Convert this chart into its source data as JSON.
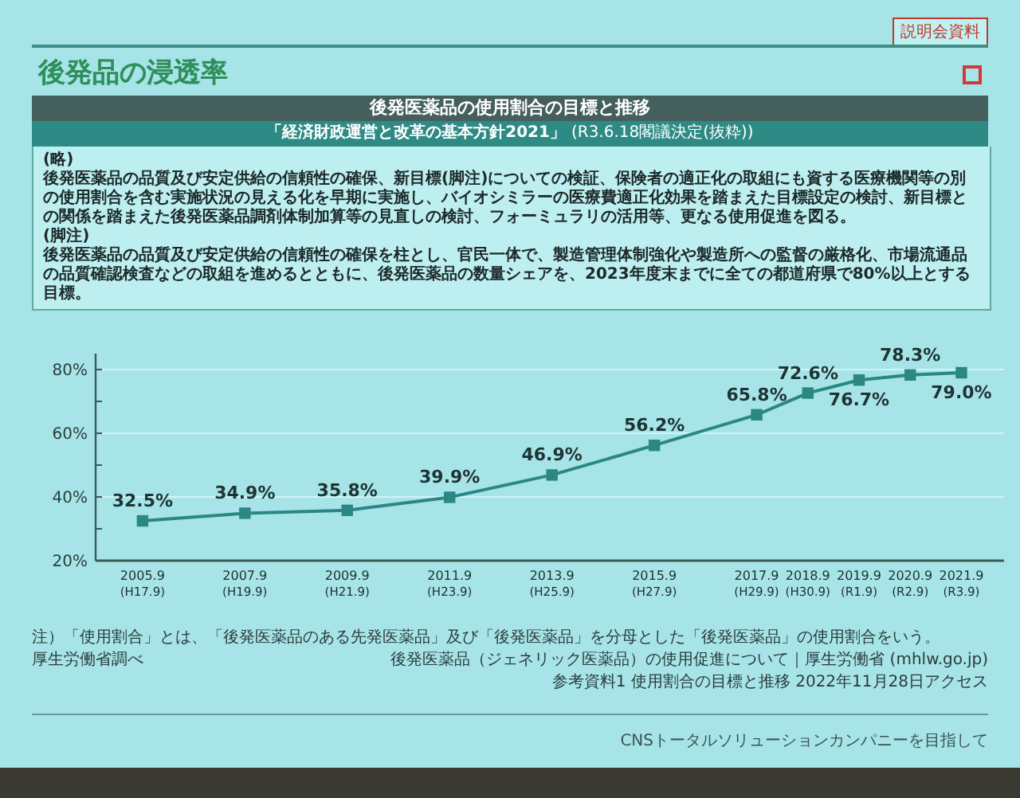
{
  "chart_data": {
    "type": "line",
    "title": "後発品の浸透率",
    "subtitle": "後発医薬品の使用割合の目標と推移",
    "annotations": [
      "説明会資料",
      "「経済財政運営と改革の基本方針2021」",
      "(R3.6.18閣議決定(抜粋))",
      "(略)",
      "後発医薬品の品質及び安定供給の信頼性の確保、新目標(脚注)についての検証、保険者の適正化の取組にも資する医療機関等の別の使用割合を含む実施状況の見える化を早期に実施し、バイオシミラーの医療費適正化効果を踏まえた目標設定の検討、新目標との関係を踏まえた後発医薬品調剤体制加算等の見直しの検討、フォーミュラリの活用等、更なる使用促進を図る。",
      "(脚注)",
      "後発医薬品の品質及び安定供給の信頼性の確保を柱とし、官民一体で、製造管理体制強化や製造所への監督の厳格化、市場流通品の品質確認検査などの取組を進めるとともに、後発医薬品の数量シェアを、2023年度末までに全ての都道府県で80%以上とする目標。",
      "注）「使用割合」とは、「後発医薬品のある先発医薬品」及び「後発医薬品」を分母とした「後発医薬品」の使用割合をいう。",
      "厚生労働省調べ",
      "後発医薬品（ジェネリック医薬品）の使用促進について｜厚生労働省 (mhlw.go.jp)",
      "参考資料1 使用割合の目標と推移 2022年11月28日アクセス",
      "CNSトータルソリューションカンパニーを目指して"
    ],
    "x": [
      "2005-09",
      "2007-09",
      "2009-09",
      "2011-09",
      "2013-09",
      "2015-09",
      "2017-09",
      "2018-09",
      "2019-09",
      "2020-09",
      "2021-09"
    ],
    "xlim": [
      "2004-10",
      "2022-07"
    ],
    "xticks": [
      {
        "value": "2005-09",
        "label": "2005.9\n(H17.9)"
      },
      {
        "value": "2007-09",
        "label": "2007.9\n(H19.9)"
      },
      {
        "value": "2009-09",
        "label": "2009.9\n(H21.9)"
      },
      {
        "value": "2011-09",
        "label": "2011.9\n(H23.9)"
      },
      {
        "value": "2013-09",
        "label": "2013.9\n(H25.9)"
      },
      {
        "value": "2015-09",
        "label": "2015.9\n(H27.9)"
      },
      {
        "value": "2017-09",
        "label": "2017.9\n(H29.9)"
      },
      {
        "value": "2018-09",
        "label": "2018.9\n(H30.9)"
      },
      {
        "value": "2019-09",
        "label": "2019.9\n(R1.9)"
      },
      {
        "value": "2020-09",
        "label": "2020.9\n(R2.9)"
      },
      {
        "value": "2021-09",
        "label": "2021.9\n(R3.9)"
      }
    ],
    "ylim": [
      20,
      85
    ],
    "yticks": [
      {
        "value": 20,
        "label": "20%"
      },
      {
        "value": 30,
        "label": null
      },
      {
        "value": 40,
        "label": "40%"
      },
      {
        "value": 50,
        "label": null
      },
      {
        "value": 60,
        "label": "60%"
      },
      {
        "value": 70,
        "label": null
      },
      {
        "value": 80,
        "label": "80%"
      }
    ],
    "series": [
      {
        "color": "#2b8782",
        "values": [
          32.5,
          34.9,
          35.8,
          39.9,
          46.9,
          56.2,
          65.8,
          72.6,
          76.7,
          78.3,
          79.0
        ],
        "value_labels": [
          "32.5%",
          "34.9%",
          "35.8%",
          "39.9%",
          "46.9%",
          "56.2%",
          "65.8%",
          "72.6%",
          "76.7%",
          "78.3%",
          "79.0%"
        ]
      }
    ],
    "grid": "y",
    "marker": "square",
    "line_style": "solid"
  }
}
